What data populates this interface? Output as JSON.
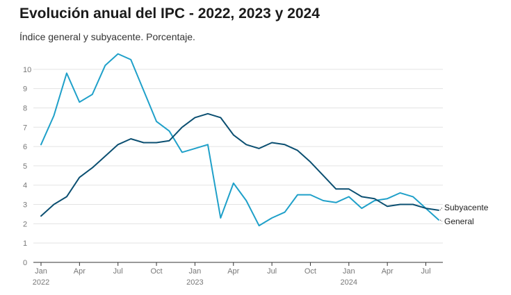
{
  "title": "Evolución anual del IPC - 2022, 2023 y 2024",
  "subtitle": "Índice general y subyacente. Porcentaje.",
  "chart_data": {
    "type": "line",
    "x": [
      "2022-01",
      "2022-02",
      "2022-03",
      "2022-04",
      "2022-05",
      "2022-06",
      "2022-07",
      "2022-08",
      "2022-09",
      "2022-10",
      "2022-11",
      "2022-12",
      "2023-01",
      "2023-02",
      "2023-03",
      "2023-04",
      "2023-05",
      "2023-06",
      "2023-07",
      "2023-08",
      "2023-09",
      "2023-10",
      "2023-11",
      "2023-12",
      "2024-01",
      "2024-02",
      "2024-03",
      "2024-04",
      "2024-05",
      "2024-06",
      "2024-07",
      "2024-08"
    ],
    "series": [
      {
        "name": "General",
        "color": "#1fa0c9",
        "values": [
          6.1,
          7.6,
          9.8,
          8.3,
          8.7,
          10.2,
          10.8,
          10.5,
          8.9,
          7.3,
          6.8,
          5.7,
          5.9,
          6.1,
          2.3,
          4.1,
          3.2,
          1.9,
          2.3,
          2.6,
          3.5,
          3.5,
          3.2,
          3.1,
          3.4,
          2.8,
          3.2,
          3.3,
          3.6,
          3.4,
          2.8,
          2.2
        ]
      },
      {
        "name": "Subyacente",
        "color": "#0b4f71",
        "values": [
          2.4,
          3.0,
          3.4,
          4.4,
          4.9,
          5.5,
          6.1,
          6.4,
          6.2,
          6.2,
          6.3,
          7.0,
          7.5,
          7.7,
          7.5,
          6.6,
          6.1,
          5.9,
          6.2,
          6.1,
          5.8,
          5.2,
          4.5,
          3.8,
          3.8,
          3.4,
          3.3,
          2.9,
          3.0,
          3.0,
          2.8,
          2.7
        ]
      }
    ],
    "ylim": [
      0,
      11
    ],
    "yticks": [
      0,
      1,
      2,
      3,
      4,
      5,
      6,
      7,
      8,
      9,
      10
    ],
    "xtick_labels": [
      {
        "index": 0,
        "month": "Jan",
        "year": "2022"
      },
      {
        "index": 3,
        "month": "Apr",
        "year": ""
      },
      {
        "index": 6,
        "month": "Jul",
        "year": ""
      },
      {
        "index": 9,
        "month": "Oct",
        "year": ""
      },
      {
        "index": 12,
        "month": "Jan",
        "year": "2023"
      },
      {
        "index": 15,
        "month": "Apr",
        "year": ""
      },
      {
        "index": 18,
        "month": "Jul",
        "year": ""
      },
      {
        "index": 21,
        "month": "Oct",
        "year": ""
      },
      {
        "index": 24,
        "month": "Jan",
        "year": "2024"
      },
      {
        "index": 27,
        "month": "Apr",
        "year": ""
      },
      {
        "index": 30,
        "month": "Jul",
        "year": ""
      }
    ],
    "grid": true,
    "xlabel": "",
    "ylabel": ""
  }
}
